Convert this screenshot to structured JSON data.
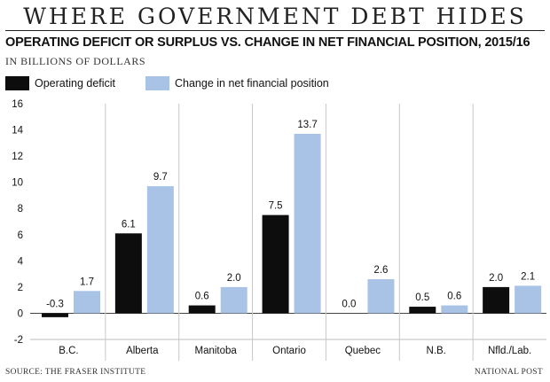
{
  "header": {
    "banner": "WHERE GOVERNMENT DEBT HIDES",
    "subtitle": "OPERATING DEFICIT OR SURPLUS VS. CHANGE IN NET FINANCIAL POSITION, 2015/16",
    "units": "IN BILLIONS OF DOLLARS"
  },
  "footer": {
    "source": "SOURCE: THE FRASER INSTITUTE",
    "credit": "NATIONAL POST"
  },
  "colors": {
    "operating": "#0d0d0d",
    "net_position": "#a8c3e6"
  },
  "chart_data": {
    "type": "bar",
    "categories": [
      "B.C.",
      "Alberta",
      "Manitoba",
      "Ontario",
      "Quebec",
      "N.B.",
      "Nfld./Lab."
    ],
    "series": [
      {
        "name": "Operating deficit",
        "values": [
          -0.3,
          6.1,
          0.6,
          7.5,
          0.0,
          0.5,
          2.0
        ],
        "labels": [
          "-0.3",
          "6.1",
          "0.6",
          "7.5",
          "0.0",
          "0.5",
          "2.0"
        ]
      },
      {
        "name": "Change in net financial position",
        "values": [
          1.7,
          9.7,
          2.0,
          13.7,
          2.6,
          0.6,
          2.1
        ],
        "labels": [
          "1.7",
          "9.7",
          "2.0",
          "13.7",
          "2.6",
          "0.6",
          "2.1"
        ]
      }
    ],
    "yticks": [
      16,
      14,
      12,
      10,
      8,
      6,
      4,
      2,
      0,
      -2
    ],
    "ylim": [
      -2,
      16
    ],
    "grid": "vertical separators between provinces",
    "legend_position": "top-left"
  }
}
